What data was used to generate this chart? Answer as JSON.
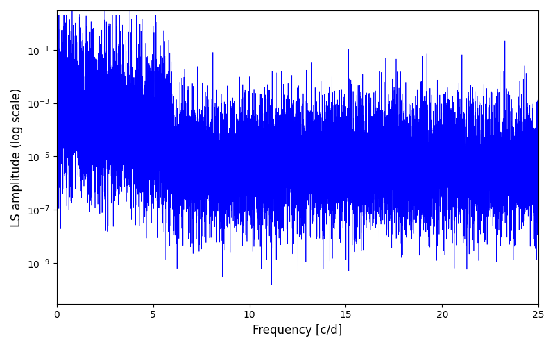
{
  "xlabel": "Frequency [c/d]",
  "ylabel": "LS amplitude (log scale)",
  "line_color": "#0000ff",
  "xlim": [
    0,
    25
  ],
  "ylim": [
    3e-11,
    3.0
  ],
  "yticks": [
    1e-09,
    1e-07,
    1e-05,
    0.001,
    0.1
  ],
  "xticks": [
    0,
    5,
    10,
    15,
    20,
    25
  ],
  "figsize": [
    8.0,
    5.0
  ],
  "dpi": 100,
  "seed": 2023,
  "n_points": 12000,
  "freq_max": 25.0
}
